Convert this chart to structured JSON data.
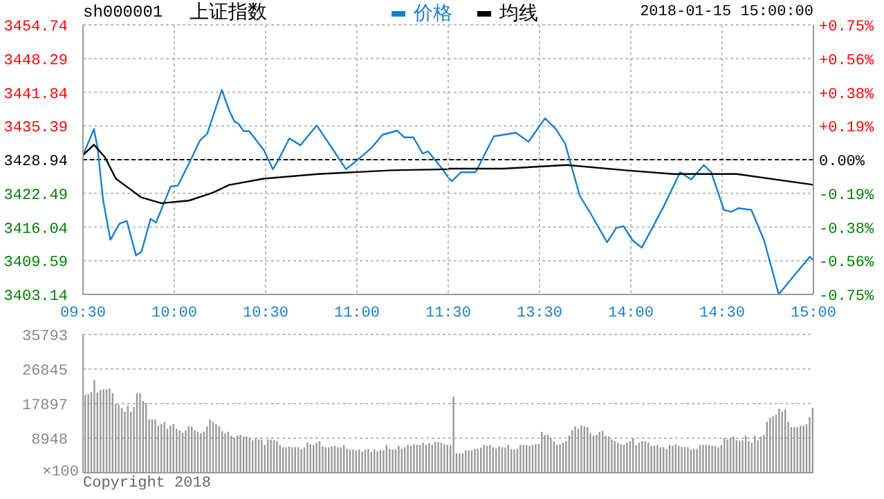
{
  "chart_data": [
    {
      "type": "line",
      "title": "上证指数",
      "subtitle": "sh000001",
      "legend": "top",
      "grid": true,
      "xlim": [
        9.5,
        11.5
      ],
      "xticks": [
        {
          "value": 9.5,
          "label": "09:30"
        },
        {
          "value": 10,
          "label": "10:00"
        },
        {
          "value": 10.5,
          "label": "10:30"
        },
        {
          "value": 11,
          "label": "11:00"
        },
        {
          "value": 11.5,
          "label": "11:30"
        }
      ],
      "ylim": [
        3403.14,
        3454.74
      ],
      "yticks": [
        3403.14,
        3409.59,
        3416.04,
        3422.49,
        3428.94,
        3435.39,
        3441.84,
        3448.29,
        3454.74
      ],
      "ref_lines": [
        {
          "axis": "y",
          "value": 3428.94,
          "color": "#000000",
          "line_style": "dashed"
        }
      ],
      "series": [
        {
          "name": "价格",
          "color": "#1a7fcc",
          "x": [
            9.5,
            9.56,
            9.58,
            9.61,
            9.65,
            9.7,
            9.74,
            9.79,
            9.82,
            9.87,
            9.9,
            9.98,
            10.02,
            10.09,
            10.14,
            10.18,
            10.26,
            10.3,
            10.33,
            10.35,
            10.38,
            10.41,
            10.49,
            10.54,
            10.57,
            10.63,
            10.69,
            10.78,
            10.88,
            10.94,
            10.99,
            11.08,
            11.14,
            11.22,
            11.26,
            11.31,
            11.36,
            11.39,
            11.47,
            11.5
          ],
          "values": [
            3429.8,
            3434.8,
            3431.2,
            3421.2,
            3413.6,
            3416.7,
            3417.2,
            3410.6,
            3411.3,
            3417.6,
            3416.9,
            3423.8,
            3424.0,
            3428.9,
            3432.6,
            3433.9,
            3442.3,
            3438.4,
            3436.2,
            3435.9,
            3434.4,
            3434.4,
            3430.8,
            3427.1,
            3428.9,
            3433.0,
            3431.7,
            3435.5,
            3430.3,
            3427.1,
            3428.5,
            3431.2,
            3433.7,
            3434.5,
            3433.2,
            3433.2,
            3430.1,
            3430.5,
            3427.1,
            3425.5
          ]
        },
        {
          "name": "均线",
          "color": "#000000",
          "x": [
            9.5,
            9.56,
            9.62,
            9.68,
            9.75,
            9.82,
            9.93,
            10.08,
            10.21,
            10.3,
            10.49,
            10.79,
            11.19,
            11.5
          ],
          "values": [
            3429.8,
            3431.8,
            3429.4,
            3425.3,
            3423.5,
            3421.7,
            3420.6,
            3421.1,
            3422.6,
            3424.1,
            3425.3,
            3426.2,
            3426.9,
            3427.1
          ]
        }
      ]
    },
    {
      "type": "line",
      "annotations": [
        "2018-01-15 15:00:00"
      ],
      "grid": true,
      "xlim": [
        13,
        15
      ],
      "xticks": [
        {
          "value": 13,
          "label": null
        },
        {
          "value": 13.5,
          "label": "13:30"
        },
        {
          "value": 14,
          "label": "14:00"
        },
        {
          "value": 14.5,
          "label": "14:30"
        },
        {
          "value": 15,
          "label": "15:00"
        }
      ],
      "y2lim": [
        -0.75,
        0.75
      ],
      "y2ticks": [
        {
          "value": -0.75,
          "label": "-0.75%"
        },
        {
          "value": -0.5625,
          "label": "-0.56%"
        },
        {
          "value": -0.375,
          "label": "-0.38%"
        },
        {
          "value": -0.1875,
          "label": "-0.19%"
        },
        {
          "value": 0,
          "label": "0.00%"
        },
        {
          "value": 0.1875,
          "label": "+0.19%"
        },
        {
          "value": 0.375,
          "label": "+0.38%"
        },
        {
          "value": 0.5625,
          "label": "+0.56%"
        },
        {
          "value": 0.75,
          "label": "+0.75%"
        }
      ],
      "ref_lines": [
        {
          "axis": "y2",
          "value": 0,
          "color": "#000000",
          "line_style": "dashed"
        }
      ],
      "series": [
        {
          "color": "#1a7fcc",
          "axis": "y2",
          "x": [
            13,
            13.02,
            13.07,
            13.15,
            13.25,
            13.37,
            13.44,
            13.53,
            13.59,
            13.64,
            13.72,
            13.78,
            13.87,
            13.92,
            13.96,
            14.01,
            14.06,
            14.18,
            14.27,
            14.33,
            14.4,
            14.44,
            14.51,
            14.55,
            14.59,
            14.66,
            14.73,
            14.81,
            14.89,
            14.98,
            15
          ],
          "values": [
            -0.1,
            -0.12,
            -0.07,
            -0.07,
            0.13,
            0.15,
            0.1,
            0.23,
            0.17,
            0.09,
            -0.2,
            -0.3,
            -0.46,
            -0.38,
            -0.37,
            -0.45,
            -0.49,
            -0.26,
            -0.07,
            -0.11,
            -0.03,
            -0.07,
            -0.28,
            -0.29,
            -0.27,
            -0.28,
            -0.45,
            -0.75,
            -0.65,
            -0.54,
            -0.56
          ]
        },
        {
          "color": "#000000",
          "axis": "y2",
          "x": [
            13,
            13.3,
            13.65,
            13.98,
            14.23,
            14.58,
            15
          ],
          "values": [
            -0.05,
            -0.05,
            -0.03,
            -0.06,
            -0.08,
            -0.08,
            -0.14
          ]
        }
      ]
    },
    {
      "type": "bar",
      "ylabel": "×100",
      "annotations": [
        "Copyright 2018"
      ],
      "color": "#999999",
      "tick_labels": "y",
      "grid": "y",
      "ylim": [
        0,
        35793
      ],
      "yticks": [
        8948,
        17897,
        26845,
        35793
      ],
      "categories": [
        null,
        null,
        null,
        null,
        null,
        null,
        null,
        null,
        null,
        null,
        null,
        null,
        null,
        null,
        null,
        null,
        null,
        null,
        null,
        null,
        null,
        null,
        null,
        null,
        null,
        null,
        null,
        null,
        null,
        null,
        null,
        null,
        null,
        null,
        null,
        null,
        null,
        null,
        null,
        null,
        null,
        null,
        null,
        null,
        null,
        null,
        null,
        null,
        null,
        null,
        null,
        null,
        null,
        null,
        null,
        null,
        null,
        null,
        null,
        null,
        null,
        null,
        null,
        null,
        null,
        null,
        null,
        null,
        null,
        null,
        null,
        null,
        null,
        null,
        null,
        null,
        null,
        null,
        null,
        null,
        null,
        null,
        null,
        null,
        null,
        null,
        null,
        null,
        null,
        null,
        null,
        null,
        null,
        null,
        null,
        null,
        null,
        null,
        null,
        null,
        null,
        null,
        null,
        null,
        null,
        null,
        null,
        null,
        null,
        null,
        null,
        null,
        null,
        null,
        null,
        null,
        null,
        null,
        null,
        null,
        null,
        null,
        null,
        null,
        null,
        null,
        null,
        null,
        null,
        null,
        null,
        null,
        null,
        null,
        null,
        null,
        null,
        null,
        null,
        null,
        null,
        null,
        null,
        null,
        null,
        null,
        null,
        null,
        null,
        null,
        null,
        null,
        null,
        null,
        null,
        null,
        null,
        null,
        null,
        null,
        null,
        null,
        null,
        null,
        null,
        null,
        null,
        null,
        null,
        null,
        null,
        null,
        null,
        null,
        null,
        null,
        null,
        null,
        null,
        null,
        null,
        null,
        null,
        null,
        null,
        null,
        null,
        null,
        null,
        null,
        null,
        null,
        null,
        null,
        null,
        null,
        null,
        null,
        null,
        null,
        null,
        null,
        null,
        null,
        null,
        null,
        null,
        null,
        null,
        null,
        null,
        null,
        null,
        null,
        null,
        null,
        null,
        null,
        null,
        null,
        null,
        null,
        null,
        null,
        null,
        null,
        null,
        null,
        null,
        null,
        null,
        null,
        null,
        null,
        null,
        null,
        null,
        null,
        null,
        null
      ],
      "values": [
        20200,
        20400,
        20800,
        24000,
        20800,
        21400,
        21600,
        21600,
        21800,
        20600,
        17800,
        17600,
        16800,
        15800,
        17400,
        15800,
        17000,
        20600,
        20600,
        18600,
        18000,
        13800,
        13800,
        13800,
        12200,
        12600,
        13200,
        11400,
        12200,
        12600,
        11400,
        11000,
        10400,
        11000,
        12000,
        12000,
        11000,
        10600,
        10200,
        10600,
        12000,
        13800,
        13200,
        12600,
        12000,
        10800,
        10200,
        10600,
        9600,
        9000,
        9600,
        9800,
        9400,
        9400,
        9000,
        8400,
        8800,
        8600,
        8600,
        7200,
        8600,
        8600,
        8400,
        8200,
        7200,
        6600,
        6600,
        6800,
        6600,
        6600,
        6600,
        6200,
        6600,
        7800,
        7400,
        7200,
        7800,
        8200,
        6800,
        6600,
        6600,
        6800,
        7000,
        6600,
        6600,
        7200,
        6200,
        6000,
        6000,
        5800,
        6000,
        5400,
        6000,
        6200,
        5400,
        6000,
        5600,
        6000,
        5800,
        7200,
        6200,
        6000,
        6000,
        7000,
        6200,
        6600,
        7200,
        7000,
        7400,
        7200,
        7200,
        7800,
        7200,
        7600,
        7200,
        8000,
        8000,
        7800,
        7400,
        7200,
        7200,
        19700,
        5000,
        5000,
        5000,
        5800,
        5800,
        5800,
        6200,
        6200,
        6500,
        7200,
        7000,
        7200,
        6600,
        6200,
        6800,
        6600,
        6500,
        7200,
        6200,
        6000,
        6200,
        7200,
        7200,
        7200,
        7000,
        7200,
        7400,
        7400,
        10600,
        9800,
        9800,
        9000,
        8200,
        7200,
        7400,
        7800,
        8200,
        9600,
        11000,
        12000,
        11400,
        12200,
        12000,
        11800,
        10200,
        9600,
        9800,
        10600,
        10800,
        9600,
        9400,
        8600,
        8200,
        7800,
        7400,
        7200,
        7800,
        8200,
        9000,
        7200,
        7800,
        8200,
        8200,
        7800,
        7000,
        7000,
        7200,
        6600,
        6600,
        6200,
        7200,
        7000,
        7400,
        7000,
        6700,
        6600,
        6600,
        6000,
        6200,
        6200,
        7200,
        7200,
        7200,
        7200,
        7000,
        7000,
        6600,
        7200,
        9000,
        8600,
        9000,
        9400,
        8400,
        8200,
        8400,
        9600,
        8200,
        7800,
        9600,
        8400,
        9400,
        9800,
        13200,
        14200,
        14600,
        15000,
        16600,
        15800,
        16400,
        13200,
        11800,
        11800,
        11800,
        12200,
        12200,
        12600,
        14400,
        16800
      ]
    }
  ]
}
